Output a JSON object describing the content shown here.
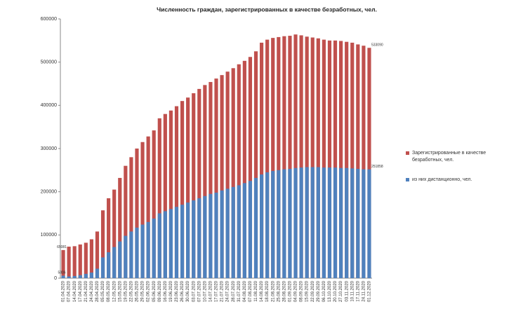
{
  "chart_data": {
    "type": "overlap_bar",
    "title": "Численность граждан, зарегистрированных в качестве безработных, чел.",
    "categories": [
      "01.04.2020",
      "07.04.2020",
      "14.04.2020",
      "17.04.2020",
      "21.04.2020",
      "24.04.2020",
      "28.04.2020",
      "05.05.2020",
      "08.05.2020",
      "12.05.2020",
      "15.05.2020",
      "19.05.2020",
      "22.05.2020",
      "26.05.2020",
      "29.05.2020",
      "02.06.2020",
      "05.06.2020",
      "09.06.2020",
      "16.06.2020",
      "19.06.2020",
      "23.06.2020",
      "26.06.2020",
      "30.06.2020",
      "03.07.2020",
      "07.07.2020",
      "10.07.2020",
      "14.07.2020",
      "17.07.2020",
      "21.07.2020",
      "24.07.2020",
      "28.07.2020",
      "31.07.2020",
      "04.08.2020",
      "07.08.2020",
      "11.08.2020",
      "14.08.2020",
      "18.08.2020",
      "21.08.2020",
      "25.08.2020",
      "28.08.2020",
      "01.09.2020",
      "04.09.2020",
      "08.09.2020",
      "15.09.2020",
      "22.09.2020",
      "29.09.2020",
      "06.10.2020",
      "13.10.2020",
      "20.10.2020",
      "27.10.2020",
      "03.11.2020",
      "10.11.2020",
      "17.11.2020",
      "24.11.2020",
      "01.12.2020"
    ],
    "series": [
      {
        "name": "Зарегистрированные в качестве безработных, чел.",
        "color": "#c0504d",
        "values": [
          65081,
          73000,
          74000,
          78000,
          82000,
          90000,
          108000,
          157000,
          185000,
          205000,
          232000,
          260000,
          280000,
          300000,
          315000,
          328000,
          342000,
          370000,
          380000,
          388000,
          398000,
          410000,
          418000,
          428000,
          438000,
          447000,
          454000,
          462000,
          470000,
          478000,
          486000,
          495000,
          503000,
          512000,
          525000,
          545000,
          552000,
          556000,
          558000,
          560000,
          561000,
          564000,
          562000,
          559000,
          557000,
          555000,
          552000,
          550000,
          550000,
          549000,
          547000,
          545000,
          541000,
          538000,
          533090
        ]
      },
      {
        "name": "из них дистанционно, чел.",
        "color": "#4f81bd",
        "values": [
          5806,
          4000,
          5000,
          7000,
          10000,
          13000,
          22000,
          48000,
          60000,
          72000,
          85000,
          98000,
          108000,
          117000,
          124000,
          130000,
          138000,
          150000,
          155000,
          160000,
          165000,
          170000,
          175000,
          180000,
          185000,
          190000,
          195000,
          198000,
          203000,
          207000,
          211000,
          215000,
          220000,
          225000,
          232000,
          240000,
          245000,
          248000,
          250000,
          252000,
          253000,
          255000,
          256000,
          257000,
          257000,
          257000,
          256000,
          256000,
          256000,
          255000,
          255000,
          254000,
          253000,
          252000,
          251858
        ]
      }
    ],
    "data_labels": "first_and_last",
    "ylim": [
      0,
      600000
    ],
    "yticks": [
      0,
      100000,
      200000,
      300000,
      400000,
      500000,
      600000
    ],
    "grid": false,
    "legend": "right"
  }
}
